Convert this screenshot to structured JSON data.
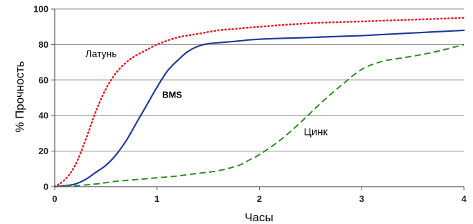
{
  "chart_data": {
    "type": "line",
    "title": "",
    "xlabel": "Часы",
    "ylabel": "% Прочность",
    "xlim": [
      0,
      4
    ],
    "ylim": [
      0,
      100
    ],
    "xticks": [
      0,
      1,
      2,
      3,
      4
    ],
    "yticks": [
      0,
      20,
      40,
      60,
      80,
      100
    ],
    "grid": {
      "horizontal": true,
      "vertical": false
    },
    "legend": "none",
    "series": [
      {
        "name": "Латунь",
        "color": "#e8202a",
        "style": "dotted",
        "x": [
          0,
          0.1,
          0.2,
          0.3,
          0.4,
          0.5,
          0.6,
          0.7,
          0.8,
          0.9,
          1.0,
          1.2,
          1.4,
          1.6,
          1.8,
          2.0,
          2.5,
          3.0,
          3.5,
          4.0
        ],
        "y": [
          0,
          4,
          12,
          26,
          42,
          55,
          64,
          70,
          74,
          77,
          80,
          84,
          86,
          88,
          89,
          90,
          92,
          93,
          94,
          95
        ]
      },
      {
        "name": "BMS",
        "color": "#1f3a9c",
        "style": "solid",
        "x": [
          0,
          0.1,
          0.2,
          0.3,
          0.4,
          0.5,
          0.6,
          0.7,
          0.8,
          0.9,
          1.0,
          1.1,
          1.2,
          1.3,
          1.4,
          1.5,
          1.6,
          1.8,
          2.0,
          2.5,
          3.0,
          3.5,
          4.0
        ],
        "y": [
          0,
          0.5,
          1.5,
          4,
          8,
          12,
          18,
          26,
          36,
          46,
          56,
          65,
          71,
          76,
          79,
          80.5,
          81,
          82,
          83,
          84,
          85,
          86.5,
          88
        ]
      },
      {
        "name": "Цинк",
        "color": "#2e8b22",
        "style": "dashed",
        "x": [
          0,
          0.2,
          0.4,
          0.6,
          0.8,
          1.0,
          1.2,
          1.4,
          1.6,
          1.8,
          1.9,
          2.0,
          2.2,
          2.4,
          2.6,
          2.8,
          3.0,
          3.2,
          3.4,
          3.6,
          3.8,
          4.0
        ],
        "y": [
          0,
          0.5,
          1.5,
          3,
          4,
          5,
          6,
          7.5,
          9,
          12,
          15,
          18,
          26,
          36,
          47,
          57,
          66,
          70.5,
          72.5,
          74.5,
          77,
          80
        ]
      }
    ],
    "annotations": [
      {
        "text": "Латунь",
        "x": 0.42,
        "y": 73
      },
      {
        "text": "BMS",
        "x": 1.1,
        "y": 50
      },
      {
        "text": "Цинк",
        "x": 2.55,
        "y": 29
      }
    ]
  }
}
